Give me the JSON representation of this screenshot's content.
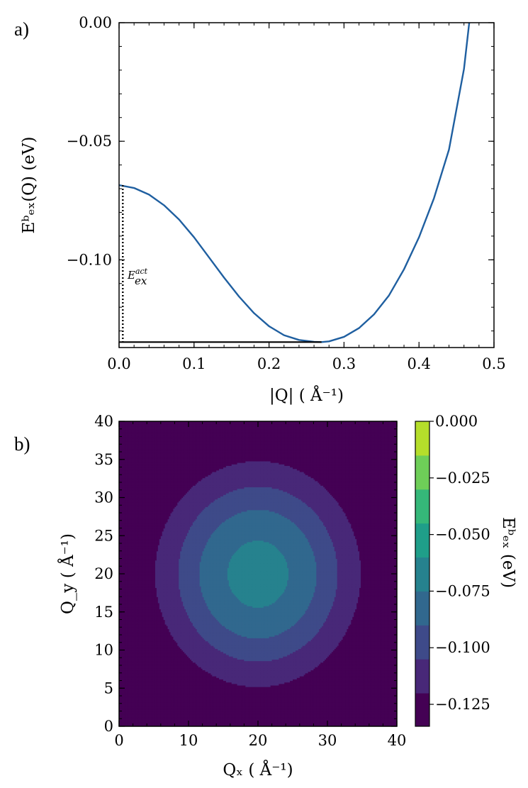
{
  "chart_data": [
    {
      "panel": "a)",
      "type": "line",
      "title": "",
      "xlabel": "|Q| ( Å⁻¹)",
      "ylabel": "Eᵇₑₓ(Q) (eV)",
      "xlim": [
        0.0,
        0.5
      ],
      "ylim": [
        -0.137,
        0.0
      ],
      "xticks": [
        "0.0",
        "0.1",
        "0.2",
        "0.3",
        "0.4",
        "0.5"
      ],
      "yticks": [
        "0.00",
        "−0.05",
        "−0.10"
      ],
      "ytick_values": [
        0.0,
        -0.05,
        -0.1
      ],
      "xtick_values": [
        0.0,
        0.1,
        0.2,
        0.3,
        0.4,
        0.5
      ],
      "series": [
        {
          "name": "E_ex^b(Q)",
          "color": "#1f5fa0",
          "x": [
            0.0,
            0.02,
            0.04,
            0.06,
            0.08,
            0.1,
            0.12,
            0.14,
            0.16,
            0.18,
            0.2,
            0.22,
            0.24,
            0.26,
            0.27,
            0.28,
            0.3,
            0.32,
            0.34,
            0.36,
            0.38,
            0.4,
            0.42,
            0.44,
            0.46,
            0.467
          ],
          "y": [
            -0.0685,
            -0.0697,
            -0.0725,
            -0.077,
            -0.083,
            -0.0905,
            -0.099,
            -0.1075,
            -0.1155,
            -0.1225,
            -0.128,
            -0.1318,
            -0.1338,
            -0.1346,
            -0.1347,
            -0.1344,
            -0.1325,
            -0.1288,
            -0.123,
            -0.115,
            -0.104,
            -0.0905,
            -0.074,
            -0.0535,
            -0.0195,
            0.0
          ]
        }
      ],
      "annotations": {
        "activation_label": "E",
        "activation_sup": "act",
        "activation_sub": "ex",
        "activation_x": 0.005,
        "activation_y_top": -0.0685,
        "activation_y_bottom": -0.1347,
        "minimum_x": 0.27,
        "minimum_y": -0.1347
      }
    },
    {
      "panel": "b)",
      "type": "heatmap",
      "xlabel": "Qₓ ( Å⁻¹)",
      "ylabel": "Q_y ( Å⁻¹)",
      "xlim": [
        0,
        40
      ],
      "ylim": [
        0,
        40
      ],
      "xticks": [
        "0",
        "10",
        "20",
        "30",
        "40"
      ],
      "yticks": [
        "0",
        "5",
        "10",
        "15",
        "20",
        "25",
        "30",
        "35",
        "40"
      ],
      "xtick_values": [
        0,
        10,
        20,
        30,
        40
      ],
      "ytick_values": [
        0,
        5,
        10,
        15,
        20,
        25,
        30,
        35,
        40
      ],
      "center": [
        20,
        20
      ],
      "zmin": -0.1347,
      "zmax": 0.0,
      "levels": [
        -0.1347,
        -0.12,
        -0.105,
        -0.09,
        -0.075,
        -0.06,
        -0.045,
        -0.03,
        -0.015,
        0.0
      ],
      "colorbar": {
        "label": "Eᵇₑₓ (eV)",
        "ticks": [
          "0.000",
          "−0.025",
          "−0.050",
          "−0.075",
          "−0.100",
          "−0.125"
        ],
        "tick_values": [
          0.0,
          -0.025,
          -0.05,
          -0.075,
          -0.1,
          -0.125
        ],
        "colors": [
          "#440154",
          "#482878",
          "#3e4a89",
          "#31688e",
          "#26828e",
          "#1f9e89",
          "#35b779",
          "#6ece58",
          "#b5de2b",
          "#fde725"
        ]
      }
    }
  ]
}
